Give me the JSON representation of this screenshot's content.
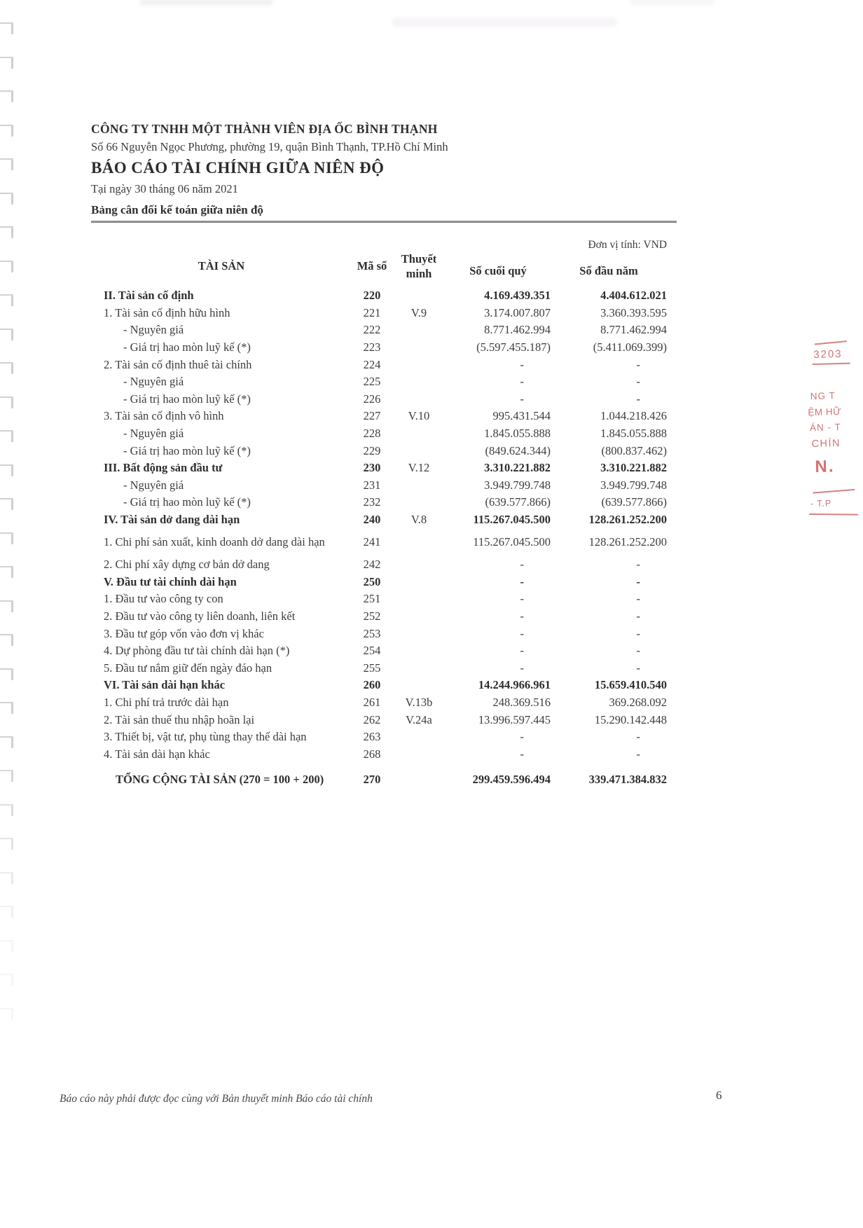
{
  "header": {
    "company_name": "CÔNG TY TNHH MỘT THÀNH VIÊN ĐỊA ỐC BÌNH THẠNH",
    "address": "Số 66 Nguyễn Ngọc Phương, phường 19, quận Bình Thạnh, TP.Hồ Chí Minh",
    "report_title": "BÁO CÁO TÀI CHÍNH GIỮA NIÊN ĐỘ",
    "report_date": "Tại ngày 30 tháng 06 năm 2021",
    "statement_title": "Bảng cân đối kế toán giữa niên độ",
    "unit_label": "Đơn vị tính: VND"
  },
  "table": {
    "columns": {
      "assets": "TÀI SẢN",
      "code": "Mã số",
      "note": "Thuyết minh",
      "ending": "Số cuối quý",
      "beginning": "Số đầu năm"
    },
    "rows": [
      {
        "label": "II. Tài sản cố định",
        "code": "220",
        "note": "",
        "ending": "4.169.439.351",
        "beginning": "4.404.612.021",
        "bold": true
      },
      {
        "label": "1. Tài sản cố định hữu hình",
        "code": "221",
        "note": "V.9",
        "ending": "3.174.007.807",
        "beginning": "3.360.393.595"
      },
      {
        "label": "- Nguyên giá",
        "code": "222",
        "note": "",
        "ending": "8.771.462.994",
        "beginning": "8.771.462.994",
        "indent": true
      },
      {
        "label": "- Giá trị hao mòn luỹ kế (*)",
        "code": "223",
        "note": "",
        "ending": "(5.597.455.187)",
        "beginning": "(5.411.069.399)",
        "indent": true
      },
      {
        "label": "2. Tài sản cố định thuê tài chính",
        "code": "224",
        "note": "",
        "ending": "-",
        "beginning": "-"
      },
      {
        "label": "- Nguyên giá",
        "code": "225",
        "note": "",
        "ending": "-",
        "beginning": "-",
        "indent": true
      },
      {
        "label": "- Giá trị hao mòn luỹ kế (*)",
        "code": "226",
        "note": "",
        "ending": "-",
        "beginning": "-",
        "indent": true
      },
      {
        "label": "3. Tài sản cố định vô hình",
        "code": "227",
        "note": "V.10",
        "ending": "995.431.544",
        "beginning": "1.044.218.426"
      },
      {
        "label": "- Nguyên giá",
        "code": "228",
        "note": "",
        "ending": "1.845.055.888",
        "beginning": "1.845.055.888",
        "indent": true
      },
      {
        "label": "- Giá trị hao mòn luỹ kế (*)",
        "code": "229",
        "note": "",
        "ending": "(849.624.344)",
        "beginning": "(800.837.462)",
        "indent": true
      },
      {
        "label": "III. Bất động sản đầu tư",
        "code": "230",
        "note": "V.12",
        "ending": "3.310.221.882",
        "beginning": "3.310.221.882",
        "bold": true
      },
      {
        "label": "- Nguyên giá",
        "code": "231",
        "note": "",
        "ending": "3.949.799.748",
        "beginning": "3.949.799.748",
        "indent": true
      },
      {
        "label": "- Giá trị hao mòn luỹ kế (*)",
        "code": "232",
        "note": "",
        "ending": "(639.577.866)",
        "beginning": "(639.577.866)",
        "indent": true
      },
      {
        "label": "IV. Tài sản dở dang dài hạn",
        "code": "240",
        "note": "V.8",
        "ending": "115.267.045.500",
        "beginning": "128.261.252.200",
        "bold": true
      },
      {
        "label": "1. Chi phí sản xuất, kinh doanh dở dang dài hạn",
        "code": "241",
        "note": "",
        "ending": "115.267.045.500",
        "beginning": "128.261.252.200",
        "gap": true
      },
      {
        "label": "2. Chi phí xây dựng cơ bản dở dang",
        "code": "242",
        "note": "",
        "ending": "-",
        "beginning": "-",
        "gap": true
      },
      {
        "label": "V. Đầu tư tài chính dài hạn",
        "code": "250",
        "note": "",
        "ending": "-",
        "beginning": "-",
        "bold": true
      },
      {
        "label": "1. Đầu tư vào công ty con",
        "code": "251",
        "note": "",
        "ending": "-",
        "beginning": "-"
      },
      {
        "label": "2. Đầu tư vào công ty liên doanh, liên kết",
        "code": "252",
        "note": "",
        "ending": "-",
        "beginning": "-"
      },
      {
        "label": "3. Đầu tư góp vốn vào đơn vị khác",
        "code": "253",
        "note": "",
        "ending": "-",
        "beginning": "-"
      },
      {
        "label": "4. Dự phòng đầu tư tài chính dài hạn (*)",
        "code": "254",
        "note": "",
        "ending": "-",
        "beginning": "-"
      },
      {
        "label": "5. Đầu tư nắm giữ đến ngày đáo hạn",
        "code": "255",
        "note": "",
        "ending": "-",
        "beginning": "-"
      },
      {
        "label": "VI. Tài sản dài hạn khác",
        "code": "260",
        "note": "",
        "ending": "14.244.966.961",
        "beginning": "15.659.410.540",
        "bold": true
      },
      {
        "label": "1. Chi phí trả trước dài hạn",
        "code": "261",
        "note": "V.13b",
        "ending": "248.369.516",
        "beginning": "369.268.092"
      },
      {
        "label": "2. Tài sản thuế thu nhập hoãn lại",
        "code": "262",
        "note": "V.24a",
        "ending": "13.996.597.445",
        "beginning": "15.290.142.448"
      },
      {
        "label": "3. Thiết bị, vật tư, phụ tùng thay thế dài hạn",
        "code": "263",
        "note": "",
        "ending": "-",
        "beginning": "-"
      },
      {
        "label": "4. Tài sản dài hạn khác",
        "code": "268",
        "note": "",
        "ending": "-",
        "beginning": "-"
      },
      {
        "label": "TỔNG CỘNG TÀI SẢN (270 = 100 + 200)",
        "code": "270",
        "note": "",
        "ending": "299.459.596.494",
        "beginning": "339.471.384.832",
        "bold": true,
        "total": true
      }
    ]
  },
  "stamp": {
    "color": "#cd5f5f",
    "fragments": [
      "3203",
      "NG T",
      "ỆM HỮ",
      "ÁN - T",
      "CHÍN",
      "N.",
      "- T.P"
    ]
  },
  "footer": {
    "note": "Báo cáo này phải được đọc cùng với Bản thuyết minh Báo cáo tài chính",
    "page_number": "6"
  }
}
